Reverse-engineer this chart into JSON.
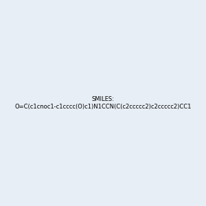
{
  "smiles": "O=C(c1cnoc1-c1cccc(O)c1)N1CCN(C(c2ccccc2)c2ccccc2)CC1",
  "bg_color": "#e8eef5",
  "image_size": 300,
  "title": ""
}
